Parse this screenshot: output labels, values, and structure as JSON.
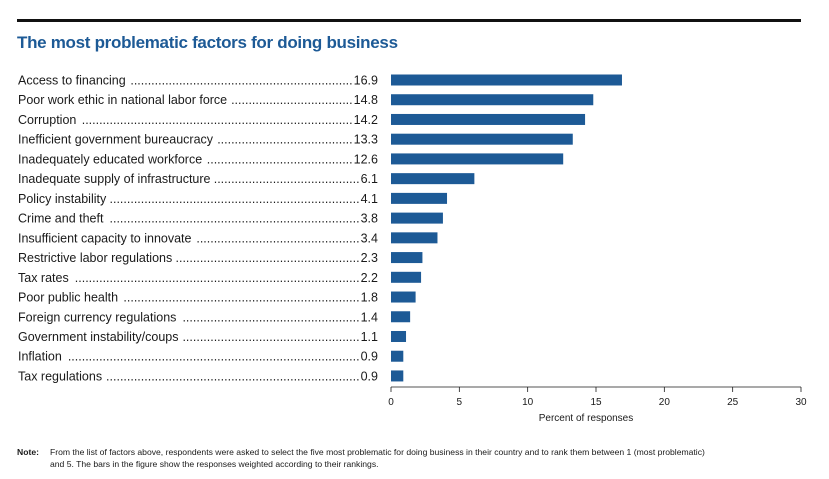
{
  "chart_data": {
    "type": "bar",
    "orientation": "horizontal",
    "title": "The most problematic factors for doing business",
    "categories": [
      "Access to financing",
      "Poor work ethic in national labor force",
      "Corruption",
      "Inefficient government bureaucracy",
      "Inadequately educated workforce",
      "Inadequate supply of infrastructure",
      "Policy instability",
      "Crime and theft",
      "Insufficient capacity to innovate",
      "Restrictive labor regulations",
      "Tax rates",
      "Poor public health",
      "Foreign currency regulations",
      "Government instability/coups",
      "Inflation",
      "Tax regulations"
    ],
    "values": [
      16.9,
      14.8,
      14.2,
      13.3,
      12.6,
      6.1,
      4.1,
      3.8,
      3.4,
      2.3,
      2.2,
      1.8,
      1.4,
      1.1,
      0.9,
      0.9
    ],
    "value_labels": [
      "16.9",
      "14.8",
      "14.2",
      "13.3",
      "12.6",
      "6.1",
      "4.1",
      "3.8",
      "3.4",
      "2.3",
      "2.2",
      "1.8",
      "1.4",
      "1.1",
      "0.9",
      "0.9"
    ],
    "xlabel": "Percent of responses",
    "xlim": [
      0,
      30
    ],
    "xticks": [
      0,
      5,
      10,
      15,
      20,
      25,
      30
    ],
    "grid": false,
    "bar_color": "#1d5a96"
  },
  "note": {
    "label": "Note:",
    "text": "From the list of factors above, respondents were asked to select the five most problematic for doing business in their country and to rank them between 1 (most problematic) and 5. The bars in the figure show the responses weighted according to their rankings."
  },
  "colors": {
    "title": "#1d5a96",
    "bars": "#1d5a96",
    "rule": "#111111"
  }
}
